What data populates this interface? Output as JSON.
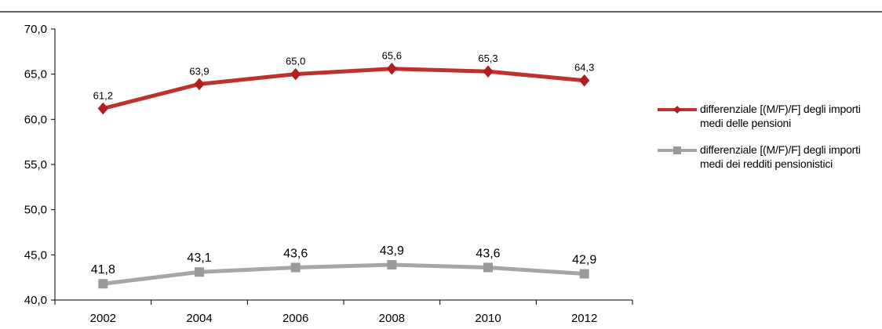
{
  "chart_data": {
    "type": "line",
    "categories": [
      "2002",
      "2004",
      "2006",
      "2008",
      "2010",
      "2012"
    ],
    "ylim": [
      40.0,
      70.0
    ],
    "yticks": [
      "40,0",
      "45,0",
      "50,0",
      "55,0",
      "60,0",
      "65,0",
      "70,0"
    ],
    "grid": false,
    "legend": "right",
    "series": [
      {
        "name": "differenziale [(M/F)/F] degli importi medi delle pensioni",
        "values": [
          61.2,
          63.9,
          65.0,
          65.6,
          65.3,
          64.3
        ],
        "labels": [
          "61,2",
          "63,9",
          "65,0",
          "65,6",
          "65,3",
          "64,3"
        ],
        "color": "#c0302c",
        "marker_color": "#b01e1e",
        "marker": "diamond"
      },
      {
        "name": "differenziale [(M/F)/F] degli importi medi dei redditi pensionistici",
        "values": [
          41.8,
          43.1,
          43.6,
          43.9,
          43.6,
          42.9
        ],
        "labels": [
          "41,8",
          "43,1",
          "43,6",
          "43,9",
          "43,6",
          "42,9"
        ],
        "color": "#a6a6a6",
        "marker_color": "#9a9a9a",
        "marker": "square"
      }
    ]
  }
}
